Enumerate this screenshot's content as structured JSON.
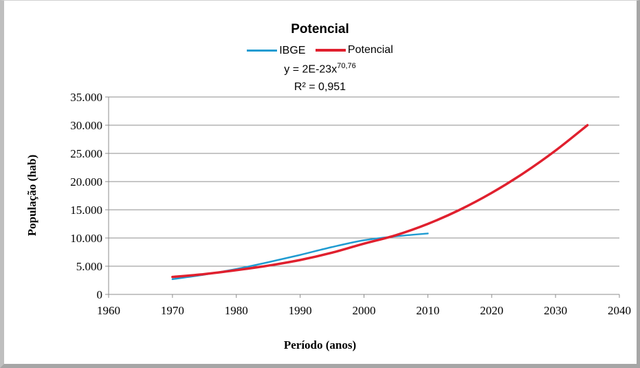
{
  "chart_data": {
    "type": "line",
    "title": "Potencial",
    "xlabel": "Período (anos)",
    "ylabel": "População (hab)",
    "xlim": [
      1960,
      2040
    ],
    "ylim": [
      0,
      35000
    ],
    "x_ticks": [
      "1960",
      "1970",
      "1980",
      "1990",
      "2000",
      "2010",
      "2020",
      "2030",
      "2040"
    ],
    "y_ticks": [
      "0",
      "5.000",
      "10.000",
      "15.000",
      "20.000",
      "25.000",
      "30.000",
      "35.000"
    ],
    "grid": "horizontal",
    "legend_position": "top",
    "trendline": {
      "equation_prefix": "y = 2E-23x",
      "equation_exponent": "70,76",
      "r_squared": "R² = 0,951"
    },
    "series": [
      {
        "name": "IBGE",
        "color": "#1f9bd1",
        "x": [
          1970,
          1975,
          1980,
          1985,
          1990,
          1995,
          2000,
          2005,
          2010
        ],
        "y": [
          2700,
          3500,
          4500,
          5700,
          7000,
          8400,
          9600,
          10300,
          10800
        ]
      },
      {
        "name": "Potencial",
        "color": "#e0202e",
        "x": [
          1970,
          1975,
          1980,
          1985,
          1990,
          1995,
          2000,
          2005,
          2010,
          2015,
          2020,
          2025,
          2030,
          2035
        ],
        "y": [
          3100,
          3600,
          4300,
          5100,
          6100,
          7400,
          9000,
          10500,
          12500,
          15000,
          18000,
          21500,
          25500,
          30000
        ]
      }
    ]
  }
}
